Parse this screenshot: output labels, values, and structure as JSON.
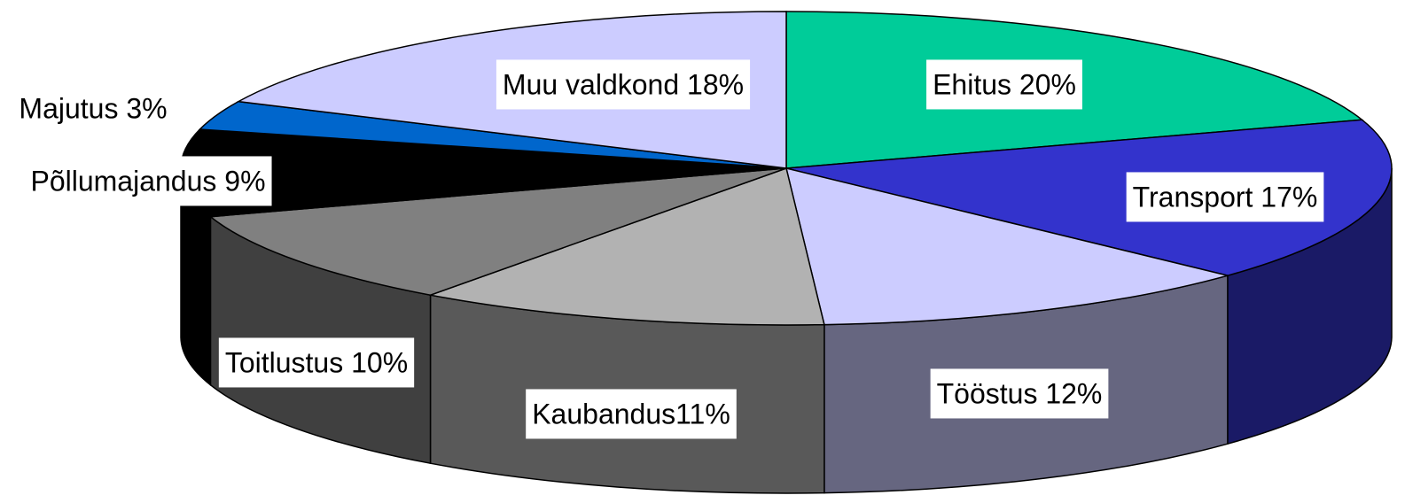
{
  "chart_data": {
    "type": "pie",
    "values": [
      20,
      17,
      12,
      11,
      10,
      9,
      3,
      18
    ],
    "value_labels": [
      "Ehitus 20%",
      "Transport 17%",
      "Tööstus 12%",
      "Kaubandus11%",
      "Toitlustus 10%",
      "Põllumajandus 9%",
      "Majutus 3%",
      "Muu valdkond 18%"
    ],
    "colors": [
      "#00cc99",
      "#3333cc",
      "#ccccff",
      "#b2b2b2",
      "#808080",
      "#000000",
      "#0066cc",
      "#ccccff"
    ]
  }
}
